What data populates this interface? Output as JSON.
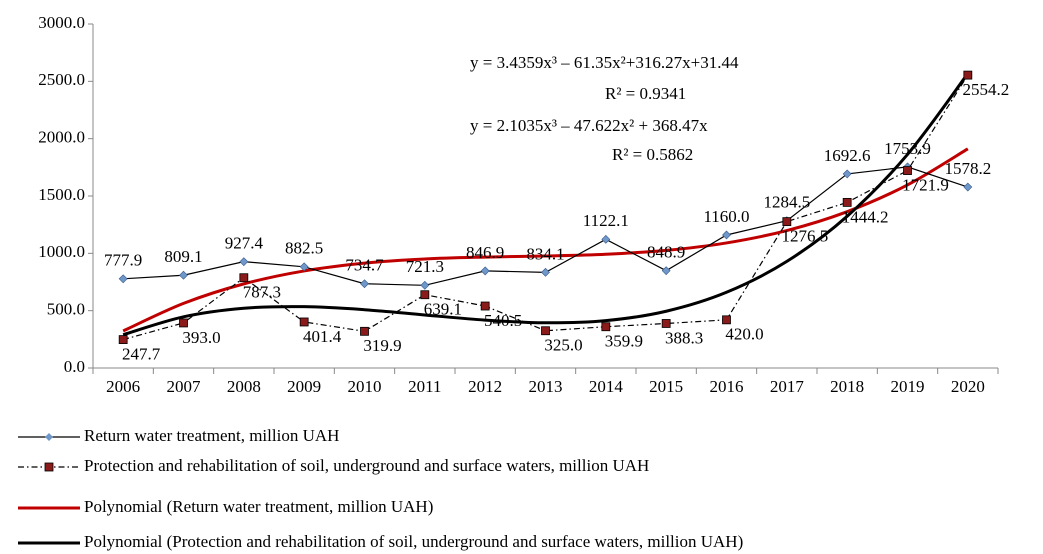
{
  "chart_data": {
    "type": "line",
    "categories": [
      "2006",
      "2007",
      "2008",
      "2009",
      "2010",
      "2011",
      "2012",
      "2013",
      "2014",
      "2015",
      "2016",
      "2017",
      "2018",
      "2019",
      "2020"
    ],
    "ylim": [
      0,
      3000
    ],
    "yticks": [
      {
        "value": 0,
        "label": "0.0"
      },
      {
        "value": 500,
        "label": "500.0"
      },
      {
        "value": 1000,
        "label": "1000.0"
      },
      {
        "value": 1500,
        "label": "1500.0"
      },
      {
        "value": 2000,
        "label": "2000.0"
      },
      {
        "value": 2500,
        "label": "2500.0"
      },
      {
        "value": 3000,
        "label": "3000.0"
      }
    ],
    "series": [
      {
        "name": "Return water treatment, million UAH",
        "color": "#000000",
        "marker_color": "#6f97c9",
        "style": "solid",
        "marker": "diamond",
        "values": [
          777.9,
          809.1,
          927.4,
          882.5,
          734.7,
          721.3,
          846.9,
          834.1,
          1122.1,
          848.9,
          1160.0,
          1284.5,
          1692.6,
          1753.9,
          1578.2
        ],
        "value_labels": [
          "777.9",
          "809.1",
          "927.4",
          "882.5",
          "734.7",
          "721.3",
          "846.9",
          "834.1",
          "1122.1",
          "848.9",
          "1160.0",
          "1284.5",
          "1692.6",
          "1753.9",
          "1578.2"
        ]
      },
      {
        "name": "Protection and rehabilitation of soil, underground and surface waters, million UAH",
        "color": "#000000",
        "marker_color": "#8b1a1a",
        "style": "dashdot",
        "marker": "square",
        "values": [
          247.7,
          393.0,
          787.3,
          401.4,
          319.9,
          639.1,
          540.5,
          325.0,
          359.9,
          388.3,
          420.0,
          1276.5,
          1444.2,
          1721.9,
          2554.2
        ],
        "value_labels": [
          "247.7",
          "393.0",
          "787.3",
          "401.4",
          "319.9",
          "639.1",
          "540.5",
          "325.0",
          "359.9",
          "388.3",
          "420.0",
          "1276.5",
          "1444.2",
          "1721.9",
          "2554.2"
        ]
      },
      {
        "name": "Polynomial (Return water treatment, million UAH)",
        "color": "#c00000",
        "style": "trend",
        "values": [
          323.0,
          563.3,
          733.6,
          846.6,
          914.7,
          950.8,
          967.3,
          977.0,
          992.3,
          1026.0,
          1090.7,
          1198.9,
          1363.4,
          1596.7,
          1911.4
        ]
      },
      {
        "name": "Polynomial (Protection and rehabilitation of soil, underground and surface waters, million UAH)",
        "color": "#000000",
        "style": "trend",
        "values": [
          289.8,
          446.1,
          520.9,
          534.8,
          508.5,
          462.6,
          417.7,
          394.4,
          413.3,
          495.0,
          660.2,
          929.5,
          1323.5,
          1862.7,
          2567.9
        ]
      }
    ],
    "annotations": [
      "y = 3.4359x³ – 61.35x²+316.27x+31.44",
      "R² = 0.9341",
      "y = 2.1035x³ – 47.622x² + 368.47x",
      "R² = 0.5862"
    ],
    "grid": false
  }
}
